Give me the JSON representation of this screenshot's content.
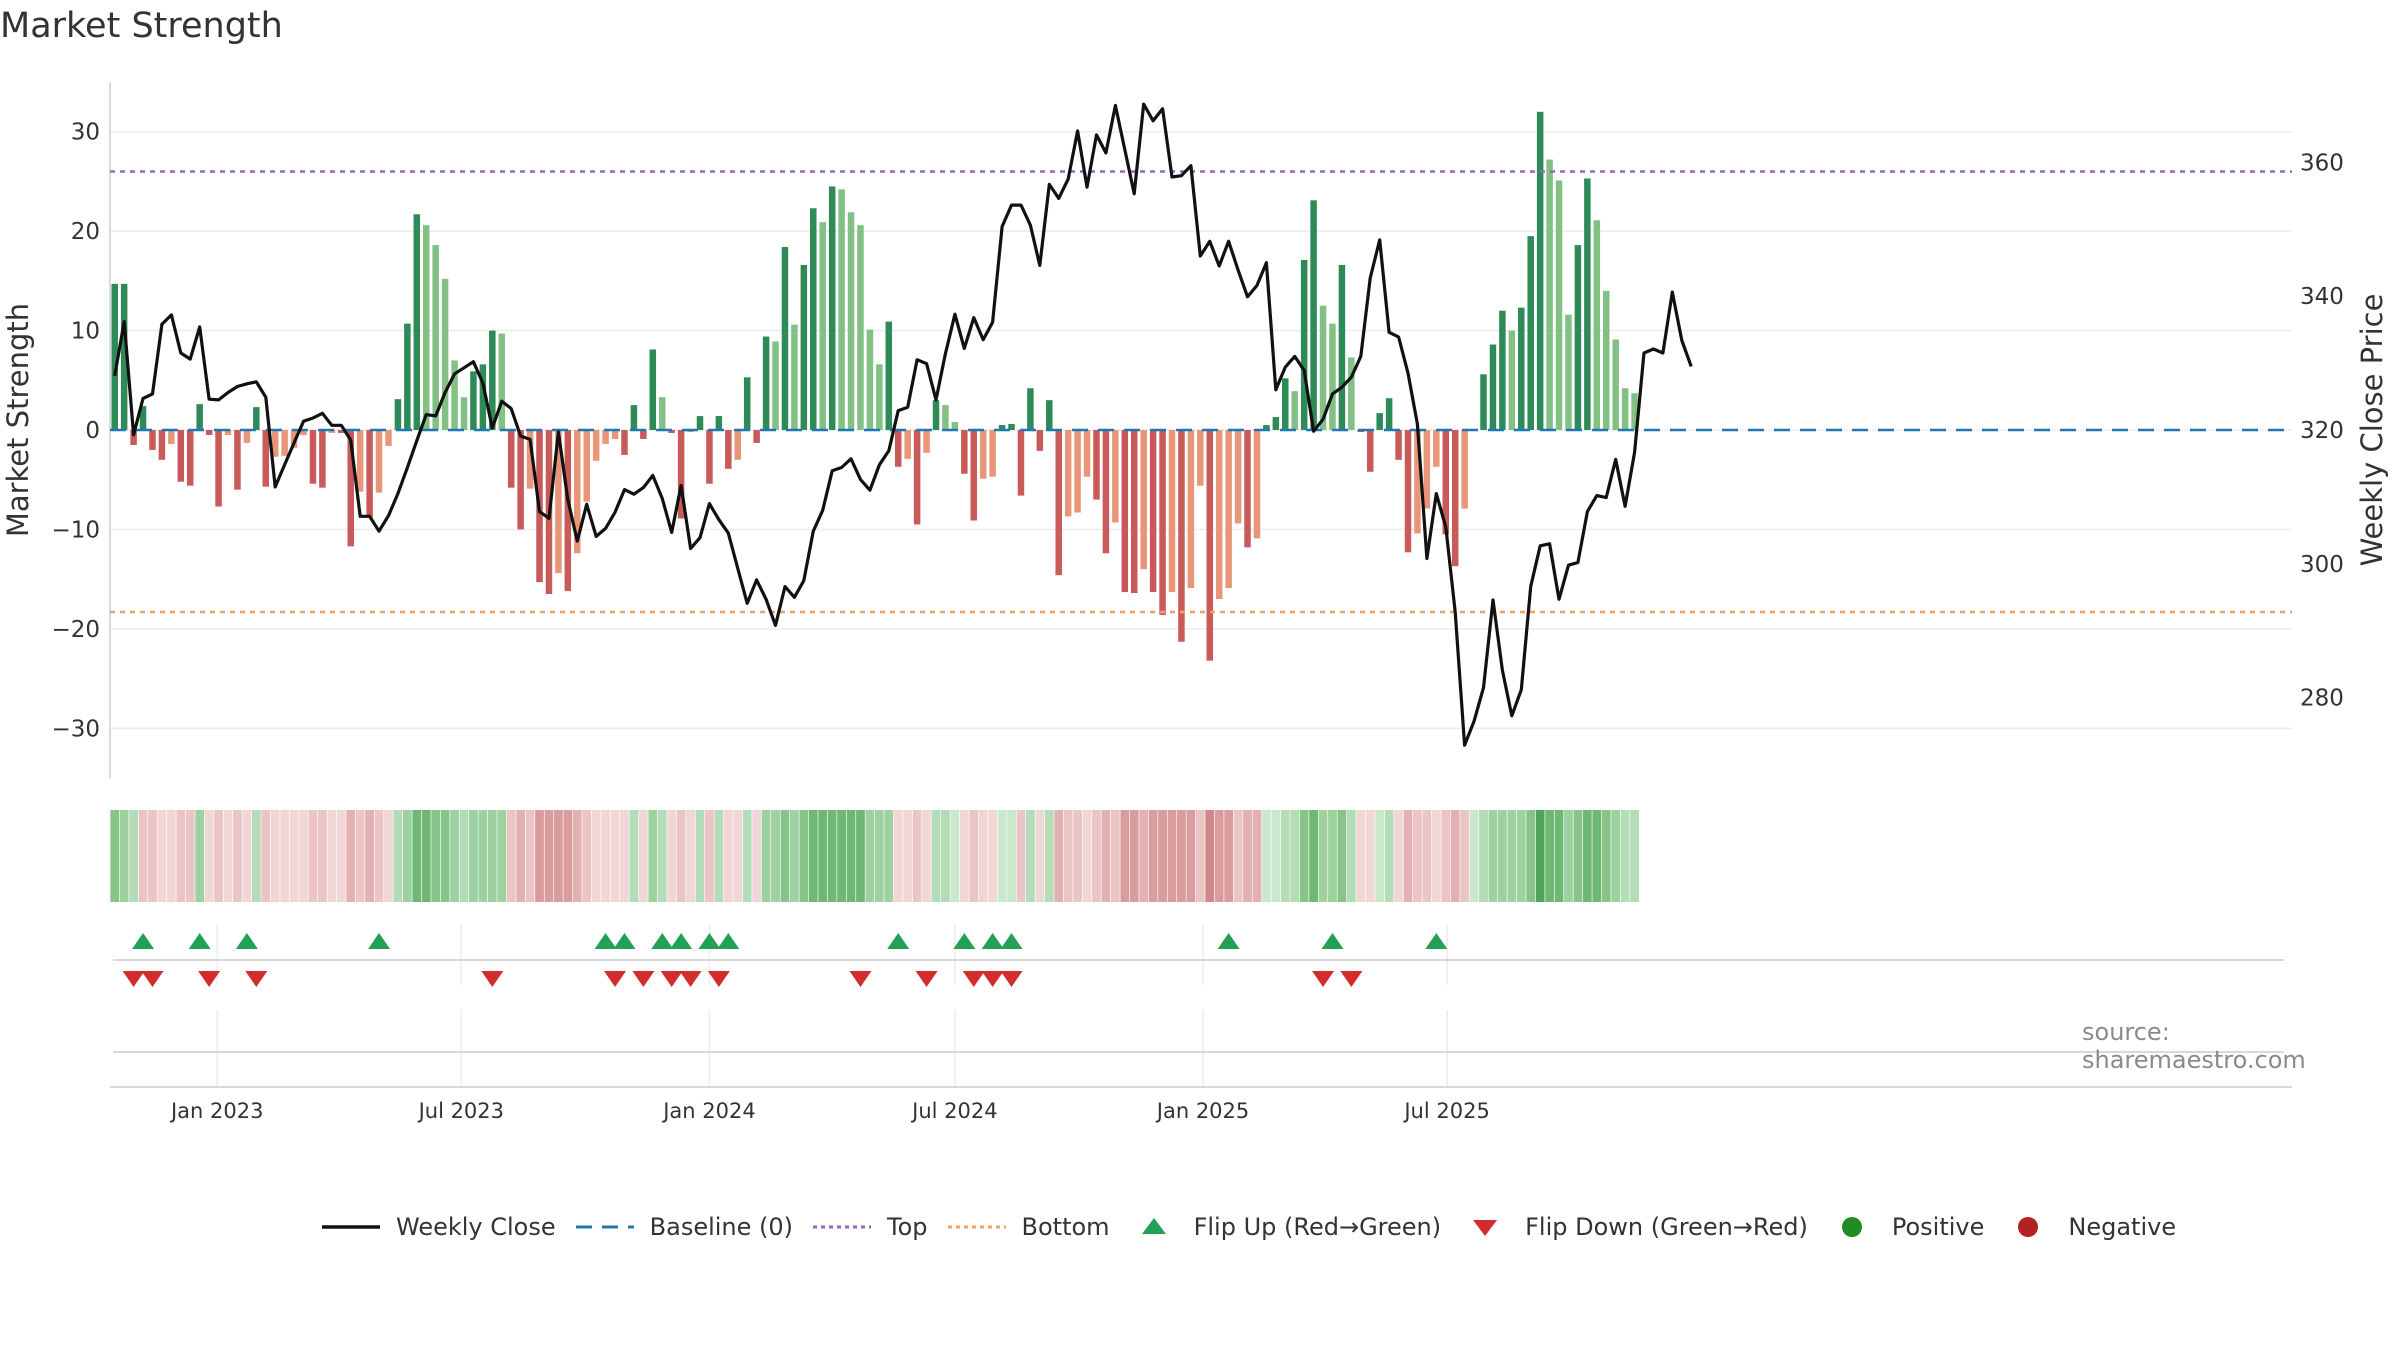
{
  "title": "Market Strength",
  "source": "source: sharemaestro.com",
  "colors": {
    "dark_green": "#2e8b57",
    "light_green": "#82c084",
    "dark_red": "#c85a5a",
    "light_red": "#e8967a",
    "baseline": "#1f77b4",
    "top_line": "#9467bd",
    "bottom_line": "#f0a060",
    "flip_up": "#22a055",
    "flip_down": "#d22c2c",
    "close": "#111111",
    "positive": "#228b22",
    "negative": "#b22222"
  },
  "chart_data": {
    "type": "bar",
    "x_start": "2022-10-17",
    "x_step_days": 7,
    "x_tick_labels": [
      "Jan 2023",
      "Jul 2023",
      "Jan 2024",
      "Jul 2024",
      "Jan 2025",
      "Jul 2025"
    ],
    "x_tick_dates": [
      "2023-01-01",
      "2023-07-01",
      "2024-01-01",
      "2024-07-01",
      "2025-01-01",
      "2025-07-01"
    ],
    "ylabel_left": "Market Strength",
    "ylabel_right": "Weekly Close Price",
    "ylim_left": [
      -35,
      35
    ],
    "yticks_left": [
      30,
      20,
      10,
      0,
      -10,
      -20,
      -30
    ],
    "ylim_right": [
      268,
      372
    ],
    "yticks_right": [
      360,
      340,
      320,
      300,
      280
    ],
    "top_threshold": 26,
    "bottom_threshold": -18.3,
    "strength": [
      14.7,
      14.7,
      -1.5,
      2.4,
      -2,
      -3,
      -1.4,
      -5.2,
      -5.6,
      2.6,
      -0.5,
      -7.7,
      -0.5,
      -6,
      -1.3,
      2.3,
      -5.7,
      -2.7,
      -2.6,
      -1.8,
      -0.5,
      -5.4,
      -5.8,
      -0.3,
      -0.3,
      -11.7,
      -6.2,
      -8.8,
      -6.3,
      -1.6,
      3.1,
      10.7,
      21.7,
      20.6,
      18.6,
      15.2,
      7,
      3.3,
      5.9,
      6.6,
      10,
      9.7,
      -5.8,
      -10,
      -5.9,
      -15.3,
      -16.5,
      -14.4,
      -16.2,
      -12.4,
      -7.2,
      -3.1,
      -1.4,
      -0.9,
      -2.5,
      2.5,
      -0.9,
      8.1,
      3.3,
      -0.3,
      -8.9,
      -0.2,
      1.4,
      -5.4,
      1.4,
      -3.9,
      -3,
      5.3,
      -1.3,
      9.4,
      8.9,
      18.4,
      10.6,
      16.6,
      22.3,
      20.9,
      24.5,
      24.2,
      21.9,
      20.6,
      10.1,
      6.6,
      10.9,
      -3.7,
      -2.9,
      -9.5,
      -2.3,
      3,
      2.5,
      0.8,
      -4.4,
      -9.1,
      -4.9,
      -4.7,
      0.5,
      0.6,
      -6.6,
      4.2,
      -2.1,
      3,
      -14.6,
      -8.7,
      -8.3,
      -4.7,
      -7,
      -12.4,
      -9.3,
      -16.3,
      -16.4,
      -14,
      -16.3,
      -18.6,
      -16.3,
      -21.3,
      -15.9,
      -5.6,
      -23.2,
      -17,
      -15.9,
      -9.4,
      -11.8,
      -10.9,
      0.5,
      1.3,
      5.2,
      3.9,
      17.1,
      23.1,
      12.5,
      10.7,
      16.6,
      7.3,
      -0.2,
      -4.2,
      1.7,
      3.2,
      -3,
      -12.3,
      -10.4,
      -7.9,
      -3.7,
      -10.5,
      -13.7,
      -7.9,
      0.1,
      5.6,
      8.6,
      12,
      10,
      12.3,
      19.5,
      32,
      27.2,
      25.1,
      11.6,
      18.6,
      25.3,
      21.1,
      14,
      9.1,
      4.2,
      3.7
    ],
    "weekly_close": [
      328.1,
      336.2,
      319.3,
      324.7,
      325.4,
      335.8,
      337.2,
      331.5,
      330.6,
      335.4,
      324.6,
      324.5,
      325.6,
      326.5,
      326.9,
      327.2,
      324.9,
      311.5,
      314.8,
      318.1,
      321.3,
      321.8,
      322.5,
      320.7,
      320.7,
      318.5,
      307.1,
      307.1,
      304.9,
      307.2,
      310.5,
      314.4,
      318.4,
      322.3,
      322.1,
      325.6,
      328.4,
      329.3,
      330.2,
      327,
      320.3,
      324.3,
      323.2,
      319.1,
      318.6,
      307.8,
      306.8,
      319.7,
      309.6,
      303.4,
      308.9,
      304.1,
      305.3,
      307.7,
      311.1,
      310.4,
      311.4,
      313.2,
      309.8,
      304.7,
      311.7,
      302.3,
      303.9,
      309,
      306.6,
      304.6,
      299.3,
      294.1,
      297.6,
      294.7,
      290.8,
      296.6,
      295,
      297.5,
      304.9,
      308,
      313.9,
      314.4,
      315.7,
      312.6,
      311,
      314.8,
      316.9,
      322.9,
      323.4,
      330.5,
      329.9,
      324.5,
      331.4,
      337.3,
      332.2,
      336.8,
      333.5,
      336.1,
      350.4,
      353.6,
      353.6,
      350.6,
      344.6,
      356.7,
      354.6,
      357.5,
      364.7,
      356.3,
      364.1,
      361.4,
      368.5,
      361.9,
      355.3,
      368.7,
      366.2,
      368,
      357.8,
      358,
      359.5,
      346,
      348.2,
      344.5,
      348.2,
      343.9,
      339.9,
      341.6,
      345,
      326,
      329.4,
      331,
      328.9,
      319.8,
      321.6,
      325.4,
      326.4,
      327.9,
      331,
      342.7,
      348.4,
      334.6,
      333.9,
      328.5,
      320.9,
      300.8,
      310.5,
      305.5,
      292.8,
      272.9,
      276.5,
      281.5,
      294.6,
      284.1,
      277.3,
      281.2,
      296.6,
      302.7,
      303,
      294.7,
      299.8,
      300.2,
      307.8,
      310.2,
      309.9,
      315.6,
      308.6,
      316.7,
      331.5,
      332.1,
      331.5,
      340.6,
      333.4,
      329.5
    ],
    "heat_levels": [
      4,
      3,
      2,
      -2,
      -2,
      -1,
      -1,
      -2,
      -2,
      3,
      -1,
      -2,
      -1,
      -2,
      -1,
      2,
      -2,
      -1,
      -1,
      -1,
      -1,
      -2,
      -2,
      -1,
      -1,
      -3,
      -2,
      -3,
      -2,
      -1,
      2,
      3,
      5,
      5,
      4,
      4,
      3,
      2,
      3,
      3,
      3,
      3,
      -2,
      -3,
      -2,
      -4,
      -4,
      -4,
      -4,
      -3,
      -2,
      -1,
      -1,
      -1,
      -1,
      2,
      -1,
      3,
      2,
      -1,
      -2,
      -1,
      2,
      -2,
      2,
      -1,
      -1,
      2,
      -1,
      3,
      3,
      4,
      3,
      4,
      5,
      5,
      5,
      5,
      5,
      5,
      3,
      3,
      3,
      -1,
      -1,
      -2,
      -1,
      2,
      2,
      1,
      -1,
      -2,
      -1,
      -1,
      1,
      1,
      -2,
      2,
      -1,
      2,
      -3,
      -2,
      -2,
      -1,
      -2,
      -3,
      -2,
      -4,
      -4,
      -3,
      -4,
      -4,
      -4,
      -4,
      -4,
      -2,
      -5,
      -4,
      -4,
      -2,
      -3,
      -3,
      1,
      1,
      2,
      2,
      4,
      5,
      3,
      3,
      4,
      2,
      -1,
      -1,
      1,
      2,
      -1,
      -3,
      -2,
      -2,
      -1,
      -2,
      -3,
      -2,
      1,
      2,
      3,
      3,
      3,
      3,
      4,
      6,
      5,
      5,
      3,
      4,
      5,
      5,
      4,
      3,
      2,
      2
    ],
    "flip_up_weeks": [
      3,
      9,
      14,
      28,
      52,
      54,
      58,
      60,
      63,
      65,
      83,
      90,
      93,
      95,
      118,
      129,
      140
    ],
    "flip_down_weeks": [
      2,
      4,
      10,
      15,
      40,
      53,
      56,
      59,
      61,
      64,
      79,
      86,
      91,
      93,
      95,
      128,
      131
    ],
    "legend": [
      "Weekly Close",
      "Baseline (0)",
      "Top",
      "Bottom",
      "Flip Up (Red→Green)",
      "Flip Down (Green→Red)",
      "Positive",
      "Negative"
    ]
  }
}
